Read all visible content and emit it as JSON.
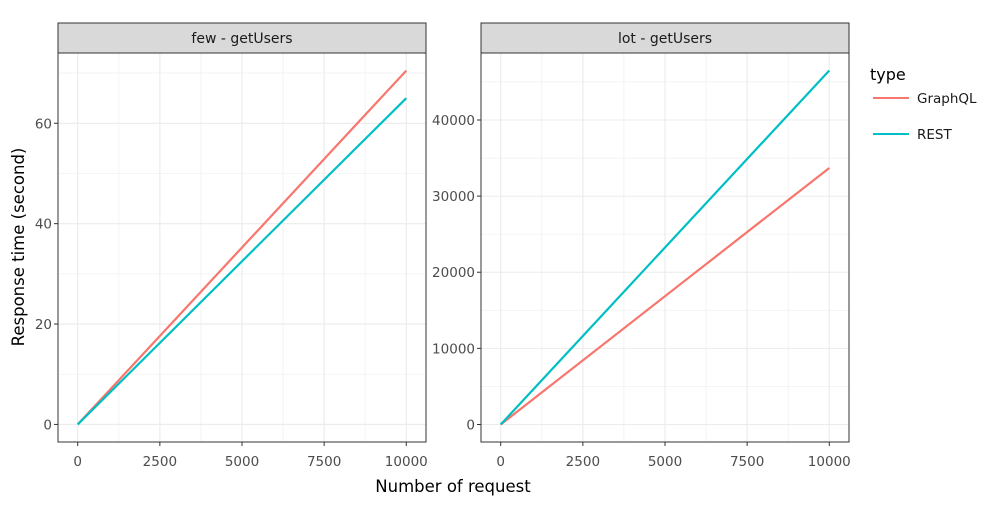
{
  "chart_data": {
    "type": "line",
    "xlabel": "Number of request",
    "ylabel": "Response time (second)",
    "legend": {
      "title": "type",
      "placement": "right",
      "entries": [
        {
          "name": "GraphQL",
          "color": "#F8766D"
        },
        {
          "name": "REST",
          "color": "#00BFC4"
        }
      ]
    },
    "grid": true,
    "panels": [
      {
        "title": "few - getUsers",
        "xlim": [
          -600,
          10600
        ],
        "ylim": [
          -3.5,
          74
        ],
        "x_ticks": [
          0,
          2500,
          5000,
          7500,
          10000
        ],
        "y_ticks": [
          0,
          20,
          40,
          60
        ],
        "series": [
          {
            "name": "GraphQL",
            "color": "#F8766D",
            "x": [
              0,
              10000
            ],
            "y": [
              0,
              70.5
            ]
          },
          {
            "name": "REST",
            "color": "#00BFC4",
            "x": [
              0,
              10000
            ],
            "y": [
              0,
              65
            ]
          }
        ]
      },
      {
        "title": "lot - getUsers",
        "xlim": [
          -600,
          10600
        ],
        "ylim": [
          -2300,
          48800
        ],
        "x_ticks": [
          0,
          2500,
          5000,
          7500,
          10000
        ],
        "y_ticks": [
          0,
          10000,
          20000,
          30000,
          40000
        ],
        "series": [
          {
            "name": "GraphQL",
            "color": "#F8766D",
            "x": [
              0,
              10000
            ],
            "y": [
              0,
              33700
            ]
          },
          {
            "name": "REST",
            "color": "#00BFC4",
            "x": [
              0,
              10000
            ],
            "y": [
              0,
              46500
            ]
          }
        ]
      }
    ]
  }
}
